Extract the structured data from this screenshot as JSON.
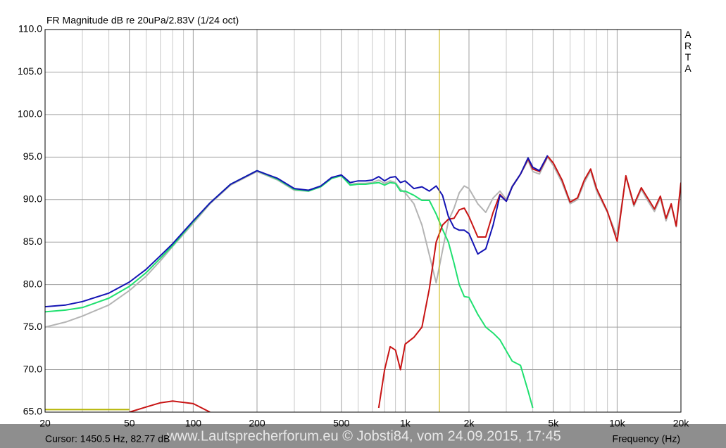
{
  "chart_data": {
    "type": "line",
    "title": "FR Magnitude dB re 20uPa/2.83V (1/24 oct)",
    "side_label": "ARTA",
    "x_label": "Frequency (Hz)",
    "cursor_label": "Cursor: 1450.5 Hz, 82.77 dB",
    "cursor_x": 1450.5,
    "cursor_color": "#c8b400",
    "watermark": "www.Lautsprecherforum.eu © Jobsti84, vom 24.09.2015, 17:45",
    "xscale": "log",
    "grid": true,
    "xlim": [
      20,
      20000
    ],
    "ylim": [
      65,
      110
    ],
    "xticks": [
      20,
      50,
      100,
      200,
      500,
      {
        "value": 1000,
        "label": "1k"
      },
      {
        "value": 2000,
        "label": "2k"
      },
      {
        "value": 5000,
        "label": "5k"
      },
      {
        "value": 10000,
        "label": "10k"
      },
      {
        "value": 20000,
        "label": "20k"
      }
    ],
    "xminor": [
      30,
      40,
      60,
      70,
      80,
      90,
      300,
      400,
      600,
      700,
      800,
      900,
      3000,
      4000,
      6000,
      7000,
      8000,
      9000
    ],
    "yticks": [
      {
        "value": 110,
        "label": "110.0"
      },
      {
        "value": 105,
        "label": "105.0"
      },
      {
        "value": 100,
        "label": "100.0"
      },
      {
        "value": 95,
        "label": "95.0"
      },
      {
        "value": 90,
        "label": "90.0"
      },
      {
        "value": 85,
        "label": "85.0"
      },
      {
        "value": 80,
        "label": "80.0"
      },
      {
        "value": 75,
        "label": "75.0"
      },
      {
        "value": 70,
        "label": "70.0"
      },
      {
        "value": 65,
        "label": "65.0"
      }
    ],
    "x": [
      20,
      25,
      30,
      40,
      50,
      60,
      70,
      80,
      100,
      120,
      150,
      200,
      250,
      300,
      350,
      400,
      450,
      500,
      550,
      600,
      650,
      700,
      750,
      800,
      850,
      900,
      950,
      1000,
      1100,
      1200,
      1300,
      1400,
      1500,
      1600,
      1700,
      1800,
      1900,
      2000,
      2200,
      2400,
      2600,
      2800,
      3000,
      3200,
      3500,
      3800,
      4000,
      4300,
      4700,
      5000,
      5500,
      6000,
      6500,
      7000,
      7500,
      8000,
      9000,
      10000,
      11000,
      12000,
      13000,
      14000,
      15000,
      16000,
      17000,
      18000,
      19000,
      20000
    ],
    "series": [
      {
        "color": "#b4b4b4",
        "values": [
          75.0,
          75.6,
          76.3,
          77.6,
          79.3,
          81.0,
          82.8,
          84.5,
          87.2,
          89.5,
          91.7,
          93.3,
          92.3,
          91.1,
          91.0,
          91.5,
          92.5,
          92.8,
          91.8,
          91.9,
          91.9,
          92.0,
          92.3,
          91.9,
          92.2,
          92.0,
          91.2,
          90.8,
          89.5,
          87.0,
          83.5,
          80.2,
          84.0,
          87.5,
          89.0,
          90.8,
          91.6,
          91.3,
          89.5,
          88.5,
          90.2,
          91.0,
          90.0,
          91.6,
          93.0,
          94.6,
          93.3,
          93.0,
          95.0,
          94.0,
          92.0,
          89.5,
          90.0,
          92.0,
          93.4,
          91.0,
          88.5,
          85.7,
          92.7,
          89.2,
          91.2,
          89.8,
          88.6,
          90.2,
          87.5,
          89.3,
          86.8,
          91.5
        ]
      },
      {
        "color": "#20e070",
        "values": [
          76.8,
          77.0,
          77.3,
          78.4,
          79.8,
          81.4,
          83.1,
          84.6,
          87.4,
          89.6,
          91.8,
          93.4,
          92.4,
          91.2,
          91.0,
          91.5,
          92.5,
          92.8,
          91.7,
          91.8,
          91.8,
          91.9,
          92.0,
          91.7,
          92.0,
          91.9,
          91.0,
          91.0,
          90.5,
          89.9,
          89.9,
          88.3,
          86.5,
          85.0,
          82.5,
          80.0,
          78.6,
          78.5,
          76.5,
          75.0,
          74.3,
          73.5,
          72.2,
          71.0,
          70.5,
          67.5,
          65.5,
          null,
          null,
          null,
          null,
          null,
          null,
          null,
          null,
          null,
          null,
          null,
          null,
          null,
          null,
          null,
          null,
          null,
          null,
          null,
          null,
          null
        ]
      },
      {
        "color": "#c81414",
        "values": [
          null,
          null,
          null,
          null,
          65.0,
          65.6,
          66.1,
          66.3,
          66.0,
          65.0,
          null,
          null,
          null,
          null,
          null,
          null,
          null,
          null,
          null,
          null,
          null,
          null,
          65.5,
          70.0,
          72.7,
          72.3,
          70.0,
          73.0,
          73.8,
          75.0,
          79.5,
          85.0,
          87.0,
          87.7,
          87.8,
          88.8,
          89.0,
          88.0,
          85.6,
          85.6,
          88.5,
          90.6,
          89.8,
          91.5,
          93.0,
          94.8,
          93.6,
          93.3,
          95.1,
          94.3,
          92.3,
          89.7,
          90.2,
          92.3,
          93.6,
          91.3,
          88.6,
          85.1,
          92.8,
          89.4,
          91.4,
          90.1,
          88.9,
          90.4,
          87.8,
          89.5,
          86.9,
          92.0
        ]
      },
      {
        "color": "#1414b4",
        "values": [
          77.4,
          77.6,
          78.0,
          79.0,
          80.3,
          81.8,
          83.4,
          84.8,
          87.5,
          89.6,
          91.8,
          93.4,
          92.5,
          91.3,
          91.1,
          91.6,
          92.6,
          92.9,
          92.0,
          92.2,
          92.2,
          92.3,
          92.7,
          92.2,
          92.6,
          92.7,
          92.0,
          92.2,
          91.3,
          91.5,
          91.0,
          91.6,
          90.5,
          88.0,
          86.7,
          86.4,
          86.4,
          86.0,
          83.6,
          84.2,
          87.0,
          90.5,
          89.8,
          91.5,
          93.0,
          94.9,
          93.8,
          93.4,
          95.2,
          null,
          null,
          null,
          null,
          null,
          null,
          null,
          null,
          null,
          null,
          null,
          null,
          null,
          null,
          null,
          null,
          null,
          null,
          null
        ]
      },
      {
        "color": "#b4b400",
        "values": [
          65.3,
          65.3,
          65.3,
          65.3,
          65.3,
          null,
          null,
          null,
          null,
          null,
          null,
          null,
          null,
          null,
          null,
          null,
          null,
          null,
          null,
          null,
          null,
          null,
          null,
          null,
          null,
          null,
          null,
          null,
          null,
          null,
          null,
          null,
          null,
          null,
          null,
          null,
          null,
          null,
          null,
          null,
          null,
          null,
          null,
          null,
          null,
          null,
          null,
          null,
          null,
          null,
          null,
          null,
          null,
          null,
          null,
          null,
          null,
          null,
          null,
          null,
          null,
          null,
          null,
          null,
          null,
          null,
          null,
          null
        ]
      }
    ]
  }
}
